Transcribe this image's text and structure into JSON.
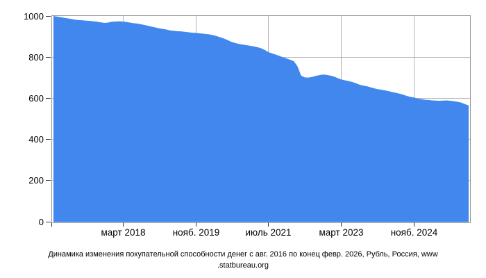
{
  "caption": {
    "line1": "Динамика изменения покупательной способности денег с авг. 2016 по конец февр. 2026, Рубль, Россия, www",
    "line2": ".statbureau.org",
    "full": "Динамика изменения покупательной способности денег с авг. 2016 по конец февр. 2026, Рубль, Россия, www.statbureau.org"
  },
  "colors": {
    "area_fill": "#4187ee",
    "grid": "#b3b3b3",
    "border": "#999999",
    "tick": "#333333",
    "text": "#000000",
    "background": "#ffffff"
  },
  "chart_data": {
    "type": "area",
    "title": "Динамика изменения покупательной способности денег с авг. 2016 по конец февр. 2026, Рубль, Россия, www.statbureau.org",
    "x_start_label": "авг. 2016",
    "x_end_label": "февр. 2026",
    "x_interval": "month",
    "ylim": [
      0,
      1000
    ],
    "y_ticks": [
      0,
      200,
      400,
      600,
      800,
      1000
    ],
    "x_ticks": [
      {
        "label": "март 2018",
        "index": 19
      },
      {
        "label": "нояб. 2019",
        "index": 39
      },
      {
        "label": "июль 2021",
        "index": 59
      },
      {
        "label": "март 2023",
        "index": 79
      },
      {
        "label": "нояб. 2024",
        "index": 99
      }
    ],
    "grid": true,
    "legend": false,
    "values": [
      1000,
      997,
      994,
      991,
      988,
      985,
      982,
      980,
      979,
      977,
      976,
      974,
      972,
      969,
      966,
      968,
      972,
      973,
      974,
      973,
      971,
      968,
      965,
      963,
      960,
      956,
      952,
      948,
      944,
      940,
      937,
      934,
      930,
      928,
      926,
      925,
      923,
      921,
      919,
      918,
      916,
      914,
      912,
      910,
      906,
      901,
      895,
      889,
      881,
      873,
      868,
      864,
      861,
      858,
      855,
      852,
      848,
      843,
      835,
      824,
      818,
      812,
      806,
      799,
      793,
      787,
      780,
      755,
      710,
      701,
      700,
      703,
      708,
      712,
      715,
      713,
      710,
      705,
      698,
      691,
      687,
      683,
      679,
      673,
      666,
      661,
      658,
      653,
      648,
      644,
      641,
      638,
      634,
      630,
      626,
      622,
      617,
      611,
      606,
      603,
      598,
      595,
      592,
      591,
      589,
      588,
      587,
      588,
      589,
      587,
      585,
      582,
      578,
      571,
      564
    ]
  }
}
